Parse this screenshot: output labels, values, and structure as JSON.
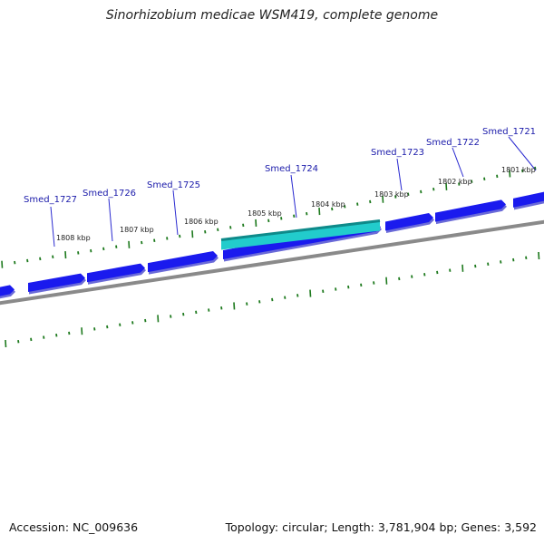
{
  "title": "Sinorhizobium medicae WSM419, complete genome",
  "footer": {
    "accession": "Accession: NC_009636",
    "topology": "Topology: circular; Length: 3,781,904 bp; Genes: 3,592"
  },
  "colors": {
    "gene_fill": "#1a1aee",
    "gene_shadow": "#6a6ad8",
    "highlight_gene_fill": "#22cccc",
    "highlight_gene_edge": "#0e8a8a",
    "backbone": "#8a8a8a",
    "tick": "#1e7a1e",
    "gene_label": "#1a1aaa",
    "kbp_label": "#222222"
  },
  "genes": [
    {
      "id": "Smed_1727",
      "label": "Smed_1727"
    },
    {
      "id": "Smed_1726",
      "label": "Smed_1726"
    },
    {
      "id": "Smed_1725",
      "label": "Smed_1725"
    },
    {
      "id": "Smed_1724",
      "label": "Smed_1724",
      "highlight": true
    },
    {
      "id": "Smed_1723",
      "label": "Smed_1723"
    },
    {
      "id": "Smed_1722",
      "label": "Smed_1722"
    },
    {
      "id": "Smed_1721",
      "label": "Smed_1721"
    }
  ],
  "kbp_labels": [
    "1808 kbp",
    "1807 kbp",
    "1806 kbp",
    "1805 kbp",
    "1804 kbp",
    "1803 kbp",
    "1802 kbp",
    "1801 kbp"
  ]
}
